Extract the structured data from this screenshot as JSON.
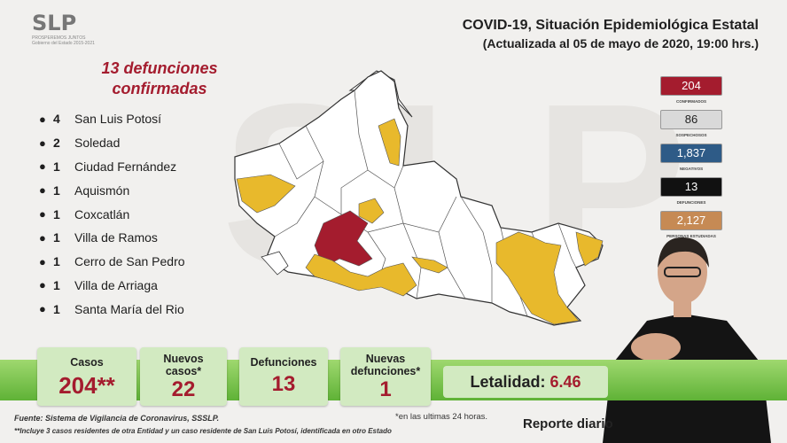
{
  "logo": {
    "mark": "SLP",
    "sub1": "PROSPEREMOS JUNTOS",
    "sub2": "Gobierno del Estado 2015-2021"
  },
  "header": {
    "title": "COVID-19, Situación Epidemiológica Estatal",
    "subtitle": "(Actualizada al 05 de mayo de 2020, 19:00 hrs.)"
  },
  "deaths_panel": {
    "title_line1": "13 defunciones",
    "title_line2": "confirmadas",
    "items": [
      {
        "count": "4",
        "place": "San Luis Potosí"
      },
      {
        "count": "2",
        "place": "Soledad"
      },
      {
        "count": "1",
        "place": "Ciudad Fernández"
      },
      {
        "count": "1",
        "place": "Aquismón"
      },
      {
        "count": "1",
        "place": "Coxcatlán"
      },
      {
        "count": "1",
        "place": "Villa de Ramos"
      },
      {
        "count": "1",
        "place": "Cerro de San Pedro"
      },
      {
        "count": "1",
        "place": "Villa de Arriaga"
      },
      {
        "count": "1",
        "place": "Santa María del Rio"
      }
    ]
  },
  "side_stats": [
    {
      "value": "204",
      "label": "CONFIRMADOS",
      "color": "#a41c2e",
      "text_color": "#ffffff"
    },
    {
      "value": "86",
      "label": "SOSPECHOSOS",
      "color": "#d9d9d9",
      "text_color": "#222222"
    },
    {
      "value": "1,837",
      "label": "NEGATIVOS",
      "color": "#2e5b87",
      "text_color": "#ffffff"
    },
    {
      "value": "13",
      "label": "DEFUNCIONES",
      "color": "#111111",
      "text_color": "#ffffff"
    },
    {
      "value": "2,127",
      "label": "PERSONAS ESTUDIADAS",
      "color": "#c68a54",
      "text_color": "#ffffff"
    }
  ],
  "summary": {
    "casos_label": "Casos",
    "casos_value": "204**",
    "nuevos_casos_label1": "Nuevos",
    "nuevos_casos_label2": "casos*",
    "nuevos_casos_value": "22",
    "defunciones_label": "Defunciones",
    "defunciones_value": "13",
    "nuevas_def_label1": "Nuevas",
    "nuevas_def_label2": "defunciones*",
    "nuevas_def_value": "1",
    "letalidad_label": "Letalidad:",
    "letalidad_value": "6.46"
  },
  "footer": {
    "source": "Fuente: Sistema de Vigilancia de Coronavirus, SSSLP.",
    "note": "**Incluye 3 casos residentes de otra Entidad y un caso residente de San Luis Potosí, identificada en otro Estado",
    "asterisk_note": "*en las ultimas 24 horas.",
    "report": "Reporte diario"
  },
  "watermark": "SLP",
  "colors": {
    "deaths": "#a41c2e",
    "cases": "#e8b92c",
    "none": "#ffffff",
    "green": "#5fb236"
  }
}
